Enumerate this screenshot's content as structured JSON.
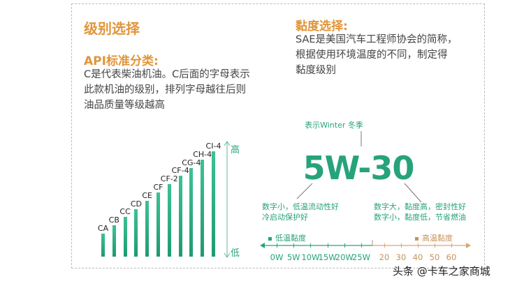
{
  "left": {
    "title": "级别选择",
    "subtitle": "API标准分类:",
    "description": [
      "C是代表柴油机油。C后面的字母表示",
      "此款机油的级别，排列字母越往后则",
      "油品质量等级越高"
    ],
    "grades": [
      "CA",
      "CB",
      "CC",
      "CD",
      "CE",
      "CF",
      "CF-2",
      "CF-4",
      "CG-4",
      "CH-4",
      "CI-4"
    ],
    "grade_levels": [
      1,
      2,
      3,
      4,
      5,
      6,
      7,
      8,
      9,
      10,
      11
    ],
    "axis_high": "高",
    "axis_low": "低"
  },
  "right": {
    "title": "黏度选择:",
    "description": [
      "SAE是美国汽车工程师协会的简称，",
      "根据使用环境温度的不同，制定得",
      "黏度级别"
    ],
    "winter_note": "表示Winter 冬季",
    "grade_code": "5W-30",
    "left_note": [
      "数字小，低温流动性好",
      "冷启动保护好"
    ],
    "right_note": [
      "数字大，黏度高，密封性好",
      "数字小，黏度低，节省燃油"
    ],
    "low_temp_legend": "低温黏度",
    "high_temp_legend": "高温黏度",
    "low_ticks": [
      "0W",
      "5W",
      "10W",
      "15W",
      "20W",
      "25W"
    ],
    "high_ticks": [
      "20",
      "30",
      "40",
      "50",
      "60"
    ]
  },
  "colors": {
    "green": "#27a37b",
    "orange": "#e0953a",
    "tan": "#c8925a"
  },
  "watermark": "头条 @卡车之家商城"
}
